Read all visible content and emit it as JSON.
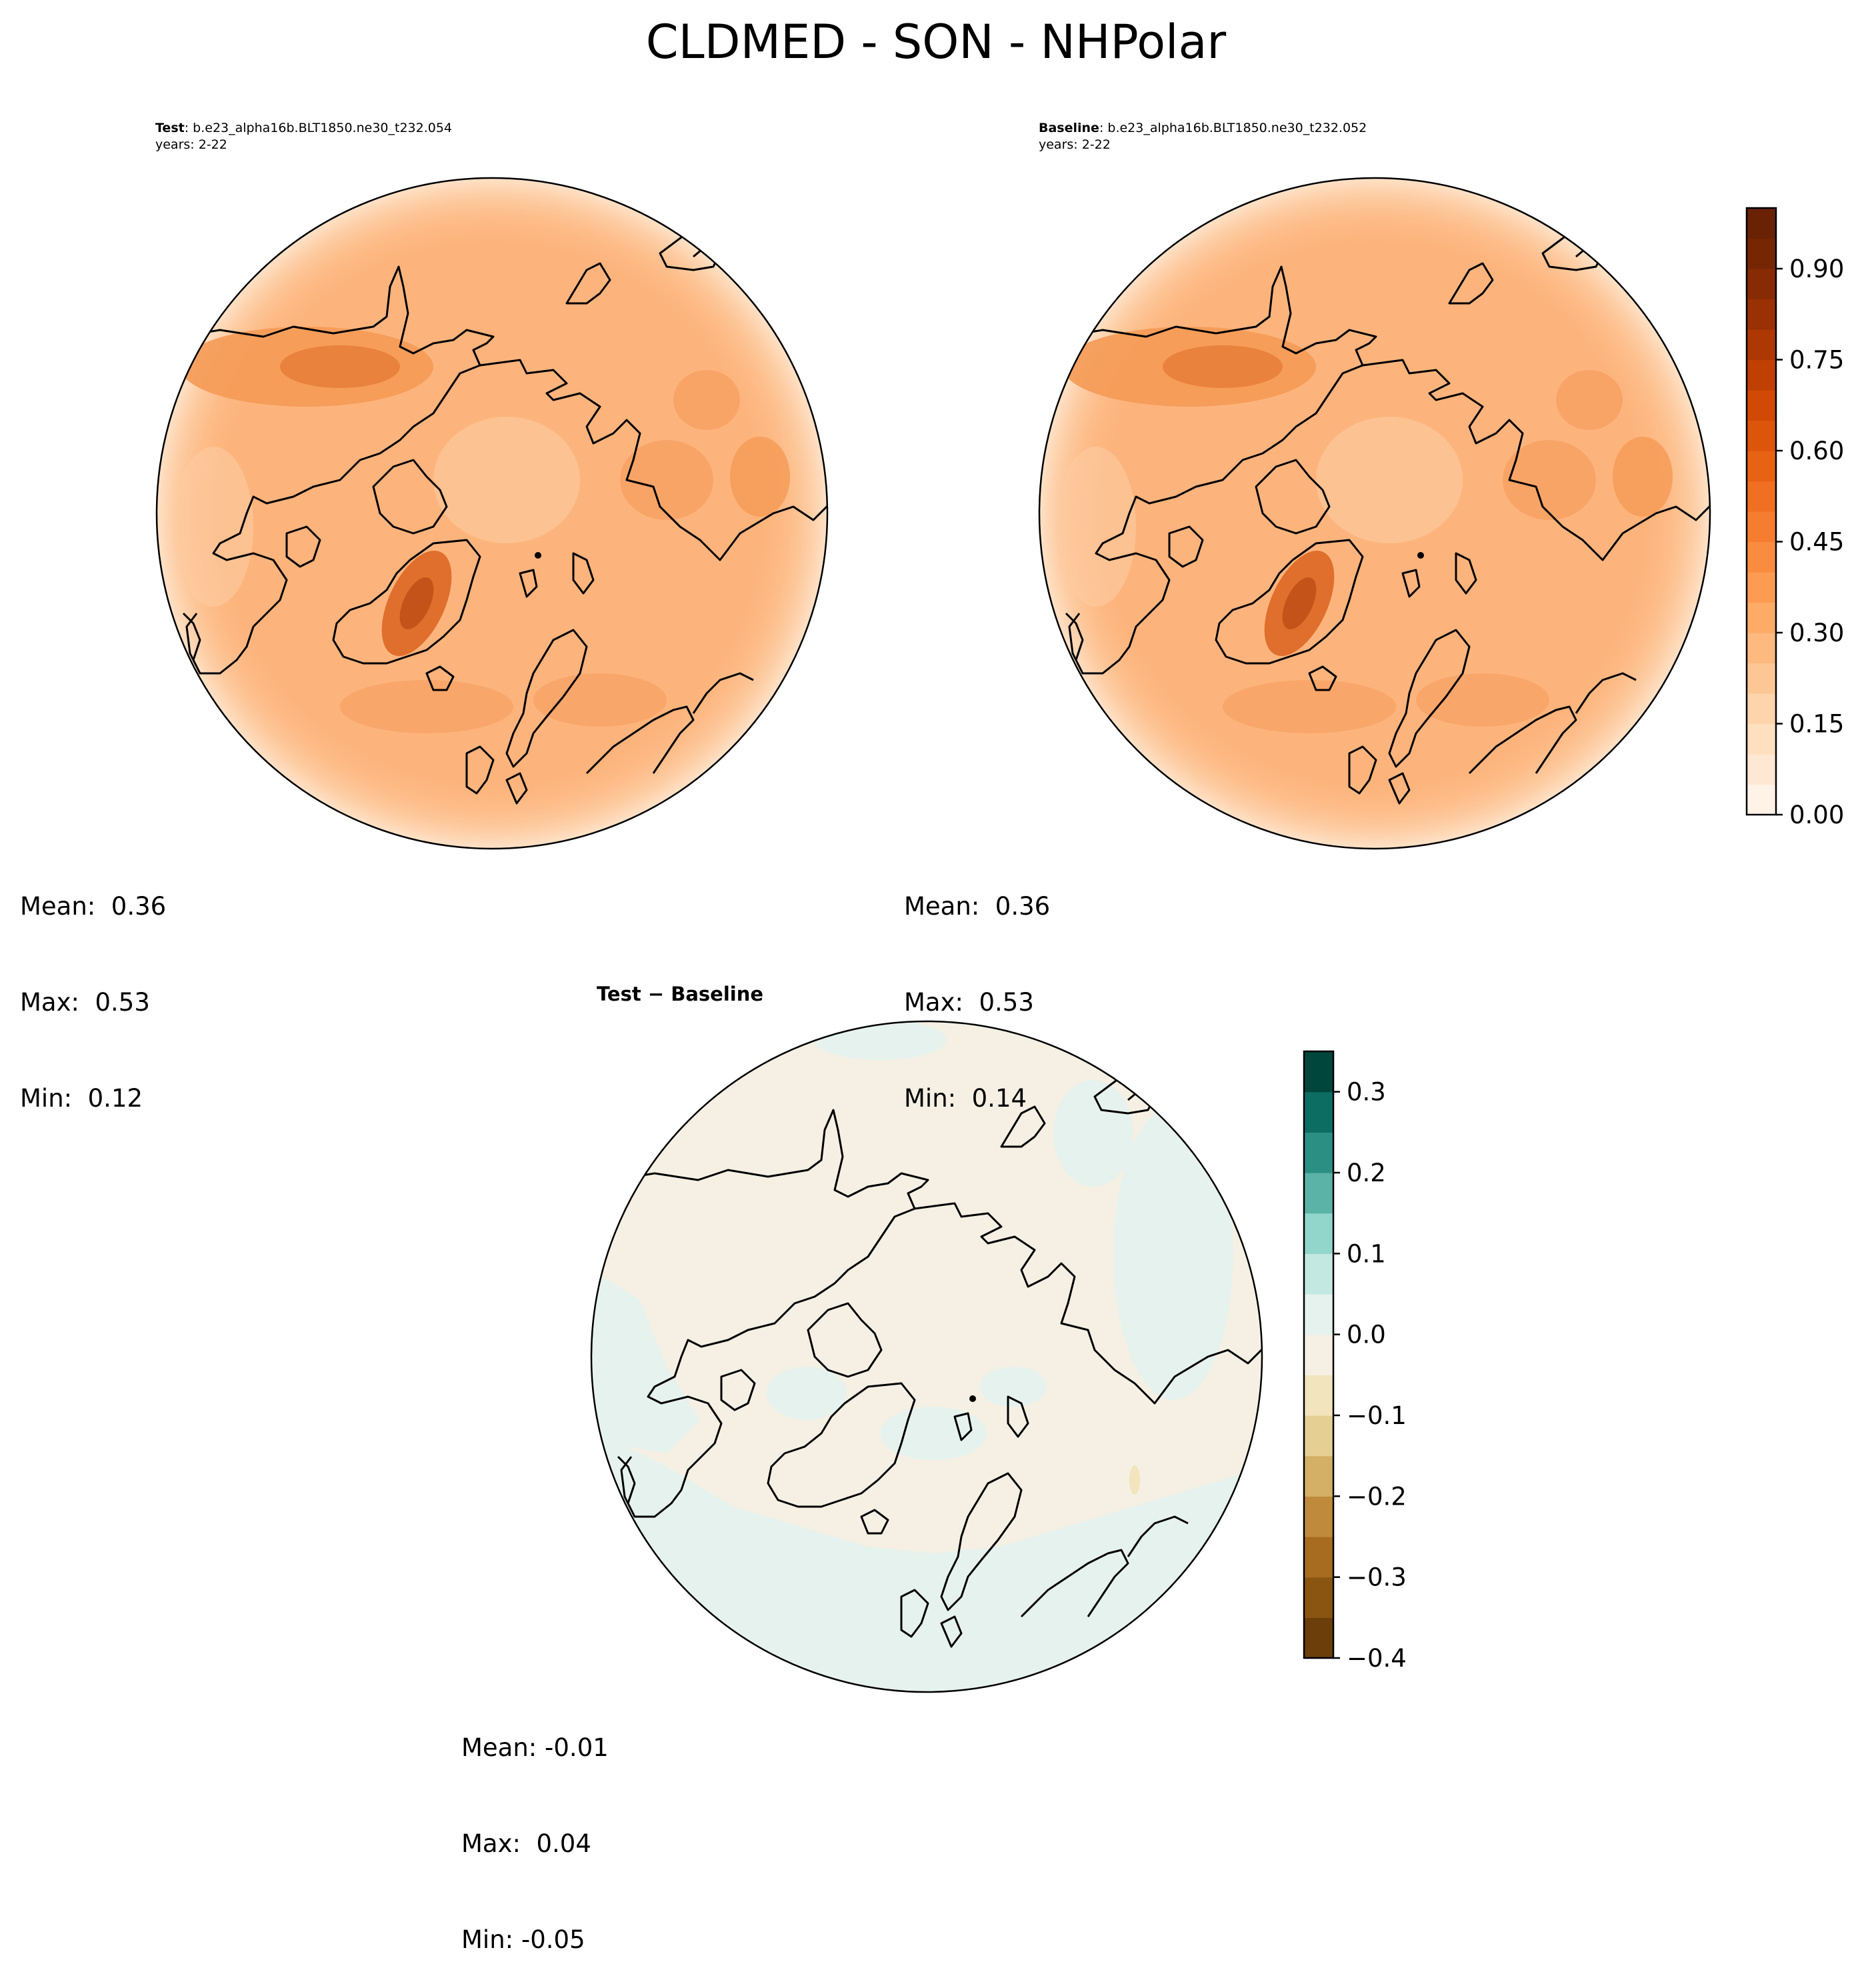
{
  "figure": {
    "title": "CLDMED - SON - NHPolar"
  },
  "panels": [
    {
      "id": "test",
      "label": "Test",
      "case_name": "b.e23_alpha16b.BLT1850.ne30_t232.054",
      "years": "years: 2-22",
      "stats": {
        "mean": "Mean:  0.36",
        "max": "Max:  0.53",
        "min": "Min:  0.12"
      }
    },
    {
      "id": "baseline",
      "label": "Baseline",
      "case_name": "b.e23_alpha16b.BLT1850.ne30_t232.052",
      "years": "years: 2-22",
      "stats": {
        "mean": "Mean:  0.36",
        "max": "Max:  0.53",
        "min": "Min:  0.14"
      }
    },
    {
      "id": "difference",
      "title": "Test − Baseline",
      "stats": {
        "mean": "Mean: -0.01",
        "max": "Max:  0.04",
        "min": "Min: -0.05"
      }
    }
  ],
  "colorbars": {
    "main": {
      "cmap": "Oranges",
      "range": [
        0.0,
        1.0
      ],
      "levels": 20,
      "ticks": [
        "0.00",
        "0.15",
        "0.30",
        "0.45",
        "0.60",
        "0.75",
        "0.90"
      ],
      "tick_values": [
        0.0,
        0.15,
        0.3,
        0.45,
        0.6,
        0.75,
        0.9
      ],
      "colors": [
        "#fff2e6",
        "#fee8d3",
        "#fedfbf",
        "#fdd4ab",
        "#fdc795",
        "#fdb97e",
        "#fdab67",
        "#fd9b52",
        "#fa8c40",
        "#f67d2f",
        "#f06f20",
        "#e86213",
        "#dd550b",
        "#d14904",
        "#c03f02",
        "#ad3803",
        "#9a3104",
        "#872b04",
        "#772604",
        "#6a2204"
      ]
    },
    "diff": {
      "cmap": "BrBG",
      "range": [
        -0.4,
        0.35
      ],
      "levels": 15,
      "ticks": [
        "−0.4",
        "−0.3",
        "−0.2",
        "−0.1",
        "0.0",
        "0.1",
        "0.2",
        "0.3"
      ],
      "tick_values": [
        -0.4,
        -0.3,
        -0.2,
        -0.1,
        0.0,
        0.1,
        0.2,
        0.3
      ],
      "colors": [
        "#6b3e0a",
        "#8a5511",
        "#a86c20",
        "#c08a3c",
        "#d3b066",
        "#e6cf93",
        "#f2e4bc",
        "#f5f0e3",
        "#e6f2ee",
        "#c3e8e1",
        "#92d5ca",
        "#5bb2a7",
        "#2c8f84",
        "#0c6d62",
        "#01463c"
      ]
    }
  },
  "colors": {
    "ocean_test": "#fdb882",
    "ocean_diff_neutral": "#f5f0e3",
    "ocean_diff_positive": "#e6f2ee",
    "coastline": "#000000"
  }
}
